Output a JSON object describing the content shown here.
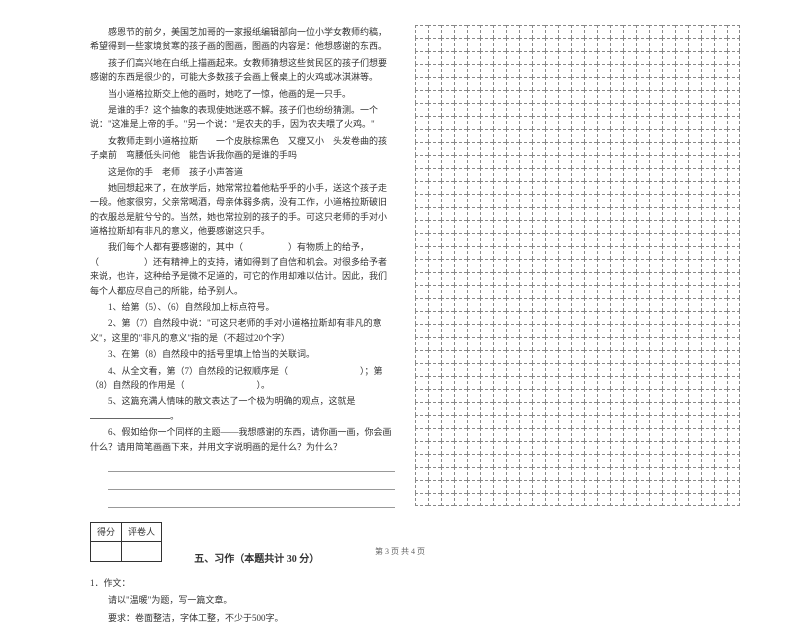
{
  "passage": {
    "p1": "感恩节的前夕，美国芝加哥的一家报纸编辑部向一位小学女教师约稿，希望得到一些家境贫寒的孩子画的图画，图画的内容是：他想感谢的东西。",
    "p2": "孩子们高兴地在白纸上描画起来。女教师猜想这些贫民区的孩子们想要感谢的东西是很少的，可能大多数孩子会画上餐桌上的火鸡或冰淇淋等。",
    "p3": "当小道格拉斯交上他的画时，她吃了一惊，他画的是一只手。",
    "p4": "是谁的手？这个抽象的表现使她迷惑不解。孩子们也纷纷猜测。一个说：\"这准是上帝的手。\"另一个说：\"是农夫的手，因为农夫喂了火鸡。\"",
    "p5": "女教师走到小道格拉斯　　一个皮肤棕黑色　又瘦又小　头发卷曲的孩子桌前　弯腰低头问他　能告诉我你画的是谁的手吗",
    "p6": "这是你的手　老师　孩子小声答道",
    "p7": "她回想起来了，在放学后，她常常拉着他粘乎乎的小手，送这个孩子走一段。他家很穷，父亲常喝酒，母亲体弱多病，没有工作，小道格拉斯破旧的衣服总是脏兮兮的。当然，她也常拉别的孩子的手。可这只老师的手对小道格拉斯却有非凡的意义，他要感谢这只手。",
    "p8": "我们每个人都有要感谢的，其中（　　　　　）有物质上的给予，（　　　　　）还有精神上的支持，诸如得到了自信和机会。对很多给予者来说，也许，这种给予是微不足道的，可它的作用却难以估计。因此，我们每个人都应尽自己的所能，给予别人。"
  },
  "questions": {
    "q1": "1、给第（5）、（6）自然段加上标点符号。",
    "q2": "2、第（7）自然段中说：\"可这只老师的手对小道格拉斯却有非凡的意义\"，这里的\"非凡的意义\"指的是（不超过20个字）",
    "q3": "3、在第（8）自然段中的括号里填上恰当的关联词。",
    "q4": "4、从全文看，第（7）自然段的记叙顺序是（　　　　　　　　）；第（8）自然段的作用是（　　　　　　　　）。",
    "q5": "5、这篇充满人情味的散文表达了一个极为明确的观点，这就是",
    "q6": "6、假如给你一个同样的主题——我想感谢的东西，请你画一画，你会画什么？请用简笔画画下来，并用文字说明画的是什么？为什么？"
  },
  "scorebox": {
    "label1": "得分",
    "label2": "评卷人"
  },
  "section": {
    "title": "五、习作（本题共计 30 分）",
    "num": "1．作文：",
    "inst1": "请以\"温暖\"为题，写一篇文章。",
    "inst2": "要求：卷面整洁，字体工整，不少于500字。"
  },
  "footer": "第 3 页  共 4 页",
  "grid": {
    "cols": 25,
    "rows": 37,
    "border_color": "#888888"
  },
  "colors": {
    "text": "#333333",
    "background": "#ffffff",
    "line": "#999999"
  }
}
